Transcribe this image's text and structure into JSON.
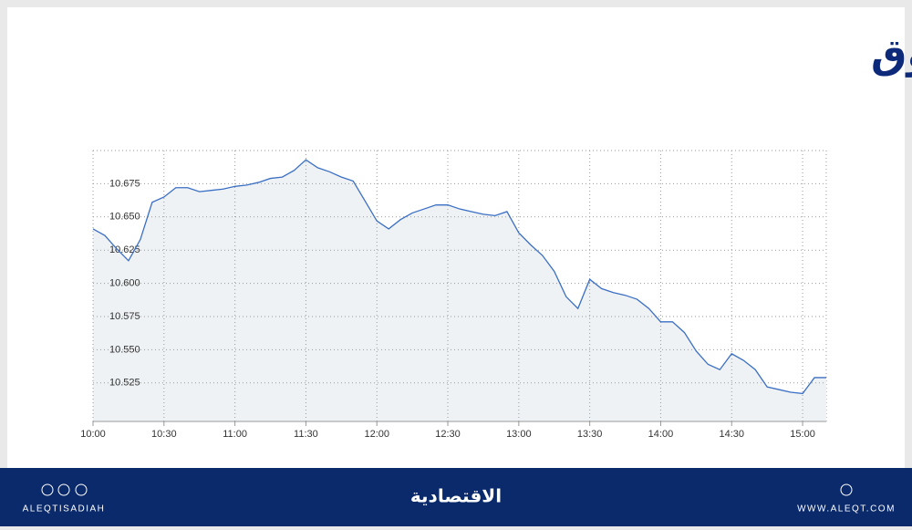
{
  "chart_data": {
    "type": "line",
    "title": "مؤشر السوق",
    "x": [
      "10:00",
      "10:05",
      "10:10",
      "10:15",
      "10:20",
      "10:25",
      "10:30",
      "10:35",
      "10:40",
      "10:45",
      "10:50",
      "10:55",
      "11:00",
      "11:05",
      "11:10",
      "11:15",
      "11:20",
      "11:25",
      "11:30",
      "11:35",
      "11:40",
      "11:45",
      "11:50",
      "11:55",
      "12:00",
      "12:05",
      "12:10",
      "12:15",
      "12:20",
      "12:25",
      "12:30",
      "12:35",
      "12:40",
      "12:45",
      "12:50",
      "12:55",
      "13:00",
      "13:05",
      "13:10",
      "13:15",
      "13:20",
      "13:25",
      "13:30",
      "13:35",
      "13:40",
      "13:45",
      "13:50",
      "13:55",
      "14:00",
      "14:05",
      "14:10",
      "14:15",
      "14:20",
      "14:25",
      "14:30",
      "14:35",
      "14:40",
      "14:45",
      "14:50",
      "14:55",
      "15:00",
      "15:05",
      "15:10"
    ],
    "values": [
      10.641,
      10.636,
      10.626,
      10.617,
      10.633,
      10.661,
      10.665,
      10.672,
      10.672,
      10.669,
      10.67,
      10.671,
      10.673,
      10.674,
      10.676,
      10.679,
      10.68,
      10.685,
      10.693,
      10.687,
      10.684,
      10.68,
      10.677,
      10.662,
      10.647,
      10.641,
      10.648,
      10.653,
      10.656,
      10.659,
      10.659,
      10.656,
      10.654,
      10.652,
      10.651,
      10.654,
      10.638,
      10.629,
      10.621,
      10.609,
      10.59,
      10.581,
      10.603,
      10.596,
      10.593,
      10.591,
      10.588,
      10.581,
      10.571,
      10.571,
      10.563,
      10.549,
      10.539,
      10.535,
      10.547,
      10.542,
      10.535,
      10.522,
      10.52,
      10.518,
      10.517,
      10.529,
      10.529
    ],
    "color": "#3b6fc4",
    "area_color": "#eef2f5",
    "grid": true,
    "ylim": [
      10.496,
      10.7
    ],
    "yticks": [
      {
        "value": 10.525,
        "label": "10.525"
      },
      {
        "value": 10.55,
        "label": "10.550"
      },
      {
        "value": 10.575,
        "label": "10.575"
      },
      {
        "value": 10.6,
        "label": "10.600"
      },
      {
        "value": 10.625,
        "label": "10.625"
      },
      {
        "value": 10.65,
        "label": "10.650"
      },
      {
        "value": 10.675,
        "label": "10.675"
      }
    ],
    "xlim": [
      "10:00",
      "15:10"
    ],
    "xticks": [
      "10:00",
      "10:30",
      "11:00",
      "11:30",
      "12:00",
      "12:30",
      "13:00",
      "13:30",
      "14:00",
      "14:30",
      "15:00"
    ]
  },
  "footer": {
    "left": "ALEQTISADIAH",
    "center": "الاقتصادية",
    "right": "WWW.ALEQT.COM"
  }
}
